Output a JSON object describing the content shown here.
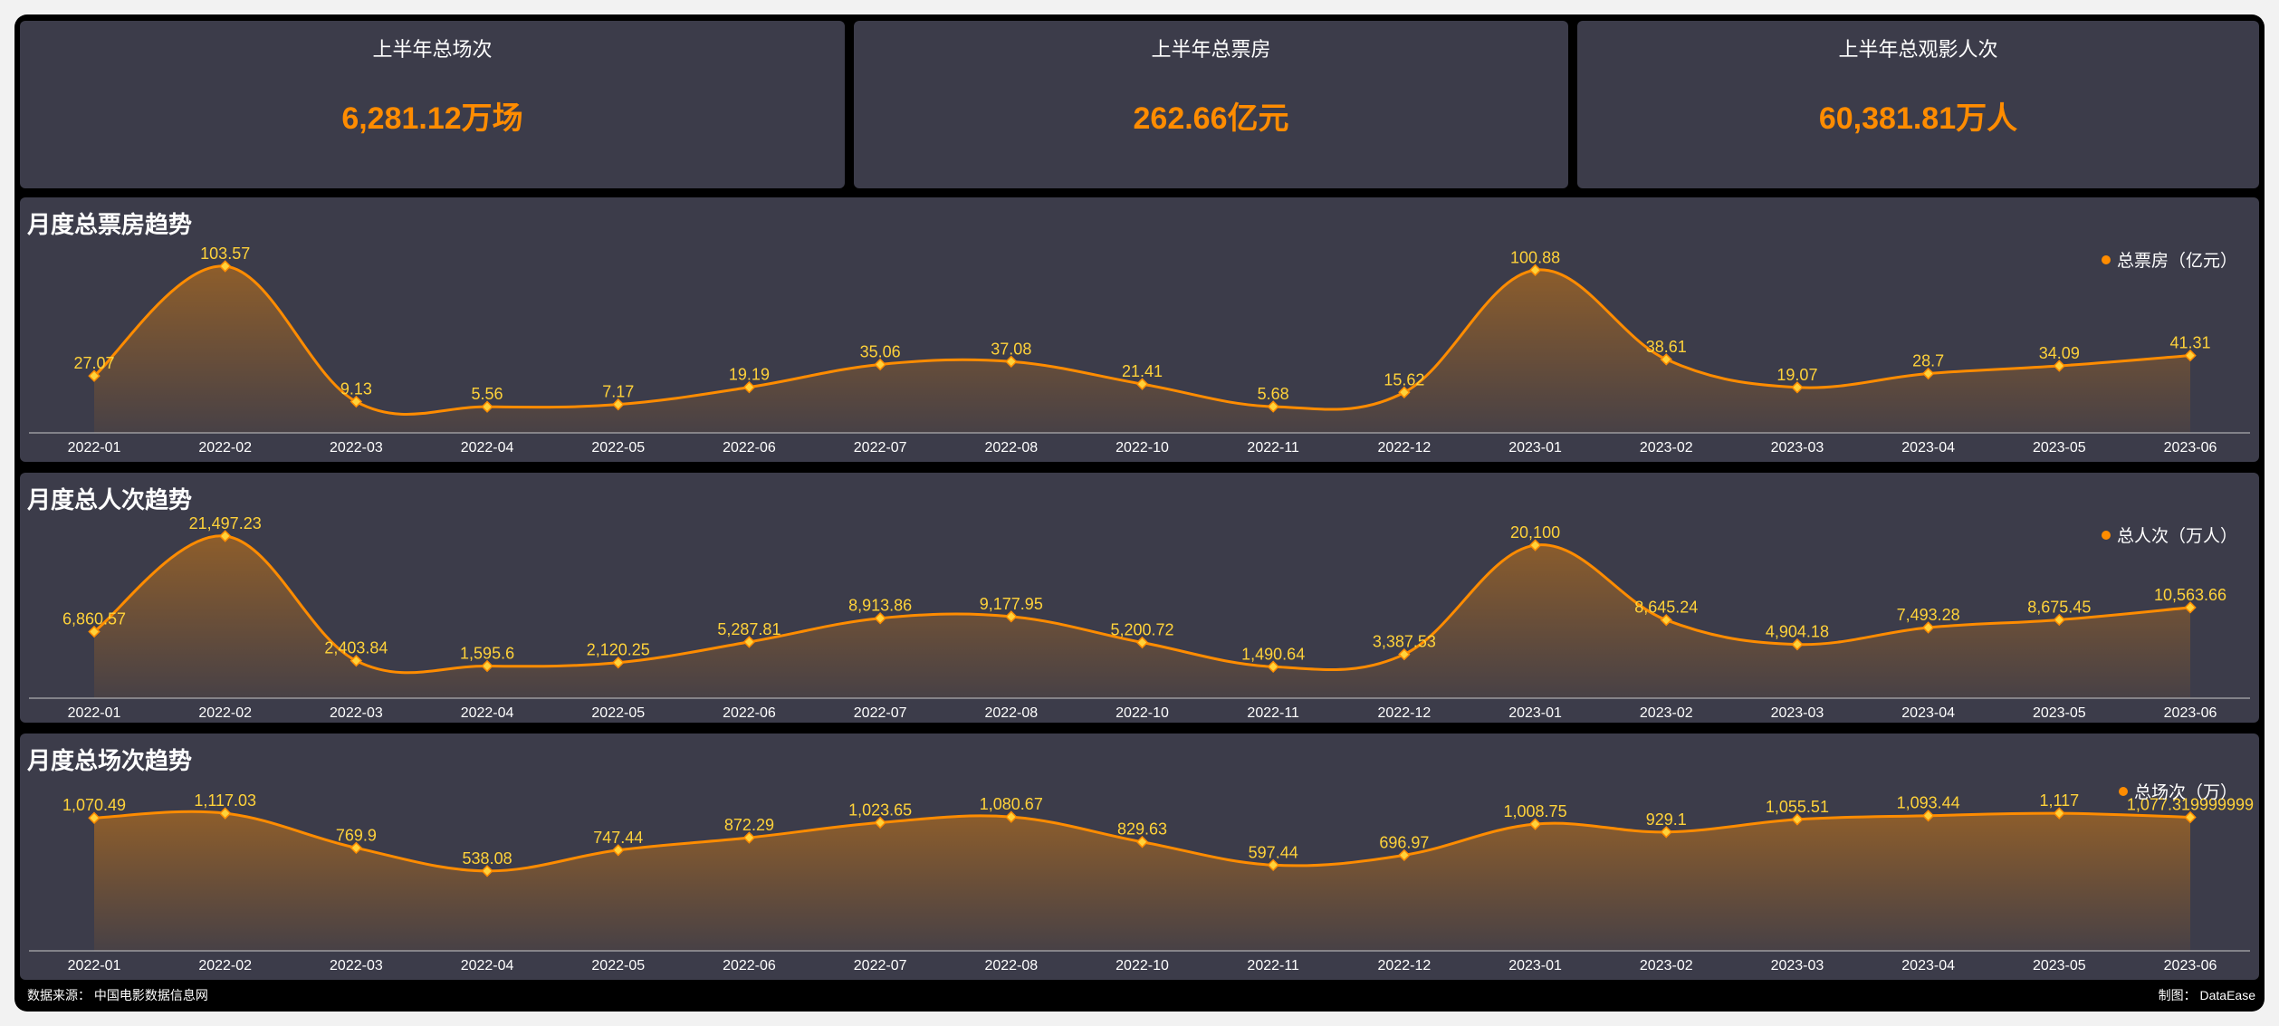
{
  "kpis": [
    {
      "title": "上半年总场次",
      "value": "6,281.12万场"
    },
    {
      "title": "上半年总票房",
      "value": "262.66亿元"
    },
    {
      "title": "上半年总观影人次",
      "value": "60,381.81万人"
    }
  ],
  "colors": {
    "accent": "#ff8c00",
    "label": "#ffd23a",
    "panel": "#3c3c4a",
    "axis": "#c8c8c8"
  },
  "footer": {
    "source": "数据来源：  中国电影数据信息网",
    "credit": "制图：  DataEase"
  },
  "chart_data": [
    {
      "type": "area",
      "title": "月度总票房趋势",
      "legend_position": "top-right",
      "categories": [
        "2022-01",
        "2022-02",
        "2022-03",
        "2022-04",
        "2022-05",
        "2022-06",
        "2022-07",
        "2022-08",
        "2022-10",
        "2022-11",
        "2022-12",
        "2023-01",
        "2023-02",
        "2023-03",
        "2023-04",
        "2023-05",
        "2023-06"
      ],
      "series": [
        {
          "name": "总票房（亿元）",
          "values": [
            27.07,
            103.57,
            9.13,
            5.56,
            7.17,
            19.19,
            35.06,
            37.08,
            21.41,
            5.68,
            15.62,
            100.88,
            38.61,
            19.07,
            28.7,
            34.09,
            41.31
          ],
          "labels": [
            "27.07",
            "103.57",
            "9.13",
            "5.56",
            "7.17",
            "19.19",
            "35.06",
            "37.08",
            "21.41",
            "5.68",
            "15.62",
            "100.88",
            "38.61",
            "19.07",
            "28.7",
            "34.09",
            "41.31"
          ]
        }
      ],
      "grid": false
    },
    {
      "type": "area",
      "title": "月度总人次趋势",
      "legend_position": "top-right",
      "categories": [
        "2022-01",
        "2022-02",
        "2022-03",
        "2022-04",
        "2022-05",
        "2022-06",
        "2022-07",
        "2022-08",
        "2022-10",
        "2022-11",
        "2022-12",
        "2023-01",
        "2023-02",
        "2023-03",
        "2023-04",
        "2023-05",
        "2023-06"
      ],
      "series": [
        {
          "name": "总人次（万人）",
          "values": [
            6860.57,
            21497.23,
            2403.84,
            1595.6,
            2120.25,
            5287.81,
            8913.86,
            9177.95,
            5200.72,
            1490.64,
            3387.53,
            20100,
            8645.24,
            4904.18,
            7493.28,
            8675.45,
            10563.66
          ],
          "labels": [
            "6,860.57",
            "21,497.23",
            "2,403.84",
            "1,595.6",
            "2,120.25",
            "5,287.81",
            "8,913.86",
            "9,177.95",
            "5,200.72",
            "1,490.64",
            "3,387.53",
            "20,100",
            "8,645.24",
            "4,904.18",
            "7,493.28",
            "8,675.45",
            "10,563.66"
          ]
        }
      ],
      "grid": false
    },
    {
      "type": "area",
      "title": "月度总场次趋势",
      "legend_position": "top-right",
      "categories": [
        "2022-01",
        "2022-02",
        "2022-03",
        "2022-04",
        "2022-05",
        "2022-06",
        "2022-07",
        "2022-08",
        "2022-10",
        "2022-11",
        "2022-12",
        "2023-01",
        "2023-02",
        "2023-03",
        "2023-04",
        "2023-05",
        "2023-06"
      ],
      "series": [
        {
          "name": "总场次（万）",
          "values": [
            1070.49,
            1117.03,
            769.9,
            538.08,
            747.44,
            872.29,
            1023.65,
            1080.67,
            829.63,
            597.44,
            696.97,
            1008.75,
            929.1,
            1055.51,
            1093.44,
            1117,
            1077.32
          ],
          "labels": [
            "1,070.49",
            "1,117.03",
            "769.9",
            "538.08",
            "747.44",
            "872.29",
            "1,023.65",
            "1,080.67",
            "829.63",
            "597.44",
            "696.97",
            "1,008.75",
            "929.1",
            "1,055.51",
            "1,093.44",
            "1,117",
            "1,077.319999999"
          ]
        }
      ],
      "grid": false
    }
  ]
}
